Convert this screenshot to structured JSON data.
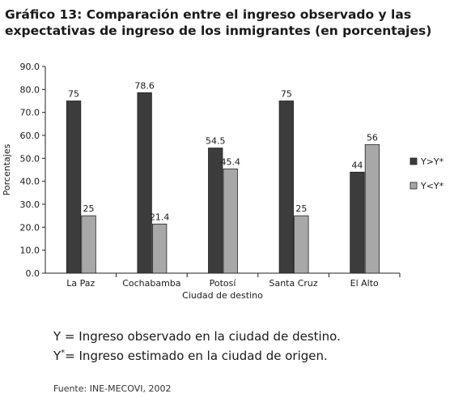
{
  "title": "Gráfico 13: Comparación entre el ingreso observado y las expectativas de ingreso de los inmigrantes (en porcentajes)",
  "notes": {
    "line1": "Y = Ingreso observado en la ciudad de destino.",
    "line2_prefix": "Y",
    "line2_sup": "*",
    "line2_rest": "= Ingreso estimado en la ciudad de origen."
  },
  "source": "Fuente: INE-MECOVI, 2002",
  "colors": {
    "series1": "#3c3c3c",
    "series2": "#a8a8a8"
  },
  "chart_data": {
    "type": "bar",
    "categories": [
      "La Paz",
      "Cochabamba",
      "Potosí",
      "Santa Cruz",
      "El Alto"
    ],
    "series": [
      {
        "name": "Y>Y*",
        "values": [
          75,
          78.6,
          54.5,
          75,
          44
        ]
      },
      {
        "name": "Y<Y*",
        "values": [
          25,
          21.4,
          45.4,
          25,
          56
        ]
      }
    ],
    "data_labels": [
      [
        "75",
        "78.6",
        "54.5",
        "75",
        "44"
      ],
      [
        "25",
        "21.4",
        "45.4",
        "25",
        "56"
      ]
    ],
    "xlabel": "Ciudad de destino",
    "ylabel": "Porcentajes",
    "ylim": [
      0,
      90
    ],
    "yticks": [
      "0.0",
      "10.0",
      "20.0",
      "30.0",
      "40.0",
      "50.0",
      "60.0",
      "70.0",
      "80.0",
      "90.0"
    ],
    "grid": false,
    "legend": "right"
  }
}
